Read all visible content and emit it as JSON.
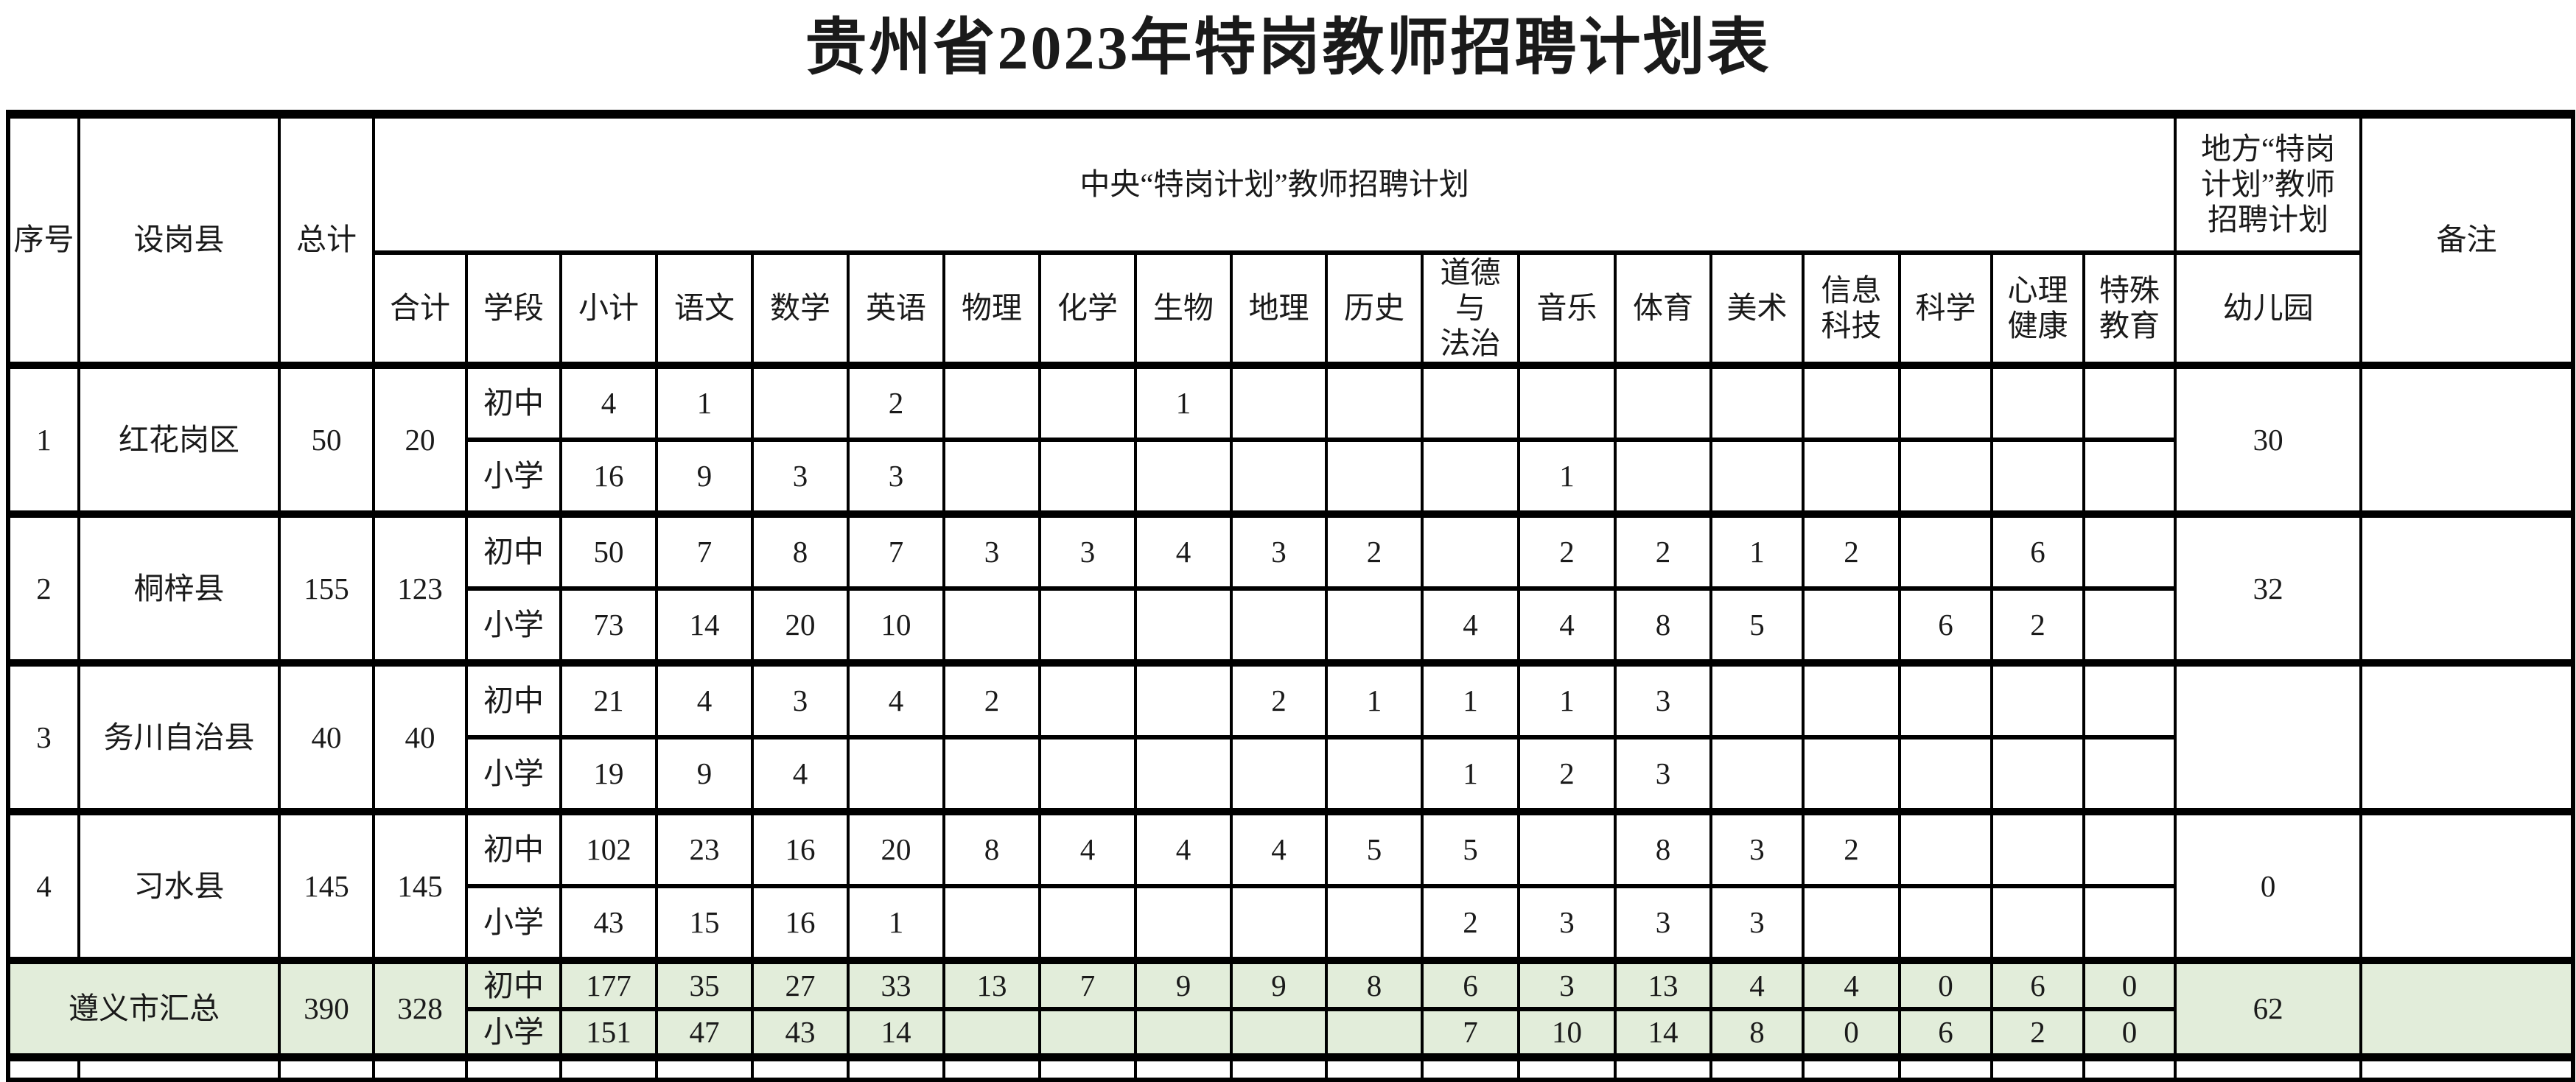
{
  "title": "贵州省2023年特岗教师招聘计划表",
  "headers": {
    "no": "序号",
    "county": "设岗县",
    "grand_total": "总计",
    "central_plan_group": "中央“特岗计划”教师招聘计划",
    "local_plan_group": "地方“特岗\n计划”教师\n招聘计划",
    "remark": "备注",
    "subtotal": "合计",
    "stage": "学段",
    "subjects": [
      "小计",
      "语文",
      "数学",
      "英语",
      "物理",
      "化学",
      "生物",
      "地理",
      "历史",
      "道德与\n法治",
      "音乐",
      "体育",
      "美术",
      "信息\n科技",
      "科学",
      "心理\n健康",
      "特殊\n教育"
    ],
    "kindergarten": "幼儿园"
  },
  "stages": {
    "junior": "初中",
    "primary": "小学"
  },
  "rows": [
    {
      "no": "1",
      "county": "红花岗区",
      "grand_total": "50",
      "subtotal": "20",
      "junior": [
        "4",
        "1",
        "",
        "2",
        "",
        "",
        "1",
        "",
        "",
        "",
        "",
        "",
        "",
        "",
        "",
        "",
        ""
      ],
      "primary": [
        "16",
        "9",
        "3",
        "3",
        "",
        "",
        "",
        "",
        "",
        "",
        "1",
        "",
        "",
        "",
        "",
        "",
        ""
      ],
      "kindergarten": "30",
      "remark": ""
    },
    {
      "no": "2",
      "county": "桐梓县",
      "grand_total": "155",
      "subtotal": "123",
      "junior": [
        "50",
        "7",
        "8",
        "7",
        "3",
        "3",
        "4",
        "3",
        "2",
        "",
        "2",
        "2",
        "1",
        "2",
        "",
        "6",
        ""
      ],
      "primary": [
        "73",
        "14",
        "20",
        "10",
        "",
        "",
        "",
        "",
        "",
        "4",
        "4",
        "8",
        "5",
        "",
        "6",
        "2",
        ""
      ],
      "kindergarten": "32",
      "remark": ""
    },
    {
      "no": "3",
      "county": "务川自治县",
      "grand_total": "40",
      "subtotal": "40",
      "junior": [
        "21",
        "4",
        "3",
        "4",
        "2",
        "",
        "",
        "2",
        "1",
        "1",
        "1",
        "3",
        "",
        "",
        "",
        "",
        ""
      ],
      "primary": [
        "19",
        "9",
        "4",
        "",
        "",
        "",
        "",
        "",
        "",
        "1",
        "2",
        "3",
        "",
        "",
        "",
        "",
        ""
      ],
      "kindergarten": "",
      "remark": ""
    },
    {
      "no": "4",
      "county": "习水县",
      "grand_total": "145",
      "subtotal": "145",
      "junior": [
        "102",
        "23",
        "16",
        "20",
        "8",
        "4",
        "4",
        "4",
        "5",
        "5",
        "",
        "8",
        "3",
        "2",
        "",
        "",
        ""
      ],
      "primary": [
        "43",
        "15",
        "16",
        "1",
        "",
        "",
        "",
        "",
        "",
        "2",
        "3",
        "3",
        "3",
        "",
        "",
        "",
        ""
      ],
      "kindergarten": "0",
      "remark": ""
    }
  ],
  "summary": {
    "label": "遵义市汇总",
    "grand_total": "390",
    "subtotal": "328",
    "junior": [
      "177",
      "35",
      "27",
      "33",
      "13",
      "7",
      "9",
      "9",
      "8",
      "6",
      "3",
      "13",
      "4",
      "4",
      "0",
      "6",
      "0"
    ],
    "primary": [
      "151",
      "47",
      "43",
      "14",
      "",
      "",
      "",
      "",
      "",
      "7",
      "10",
      "14",
      "8",
      "0",
      "6",
      "2",
      "0"
    ],
    "kindergarten": "62",
    "remark": ""
  },
  "colors": {
    "summary_row_background": "#e2edda",
    "border": "#000000",
    "text": "#1a1a1a",
    "page_background": "#ffffff"
  }
}
